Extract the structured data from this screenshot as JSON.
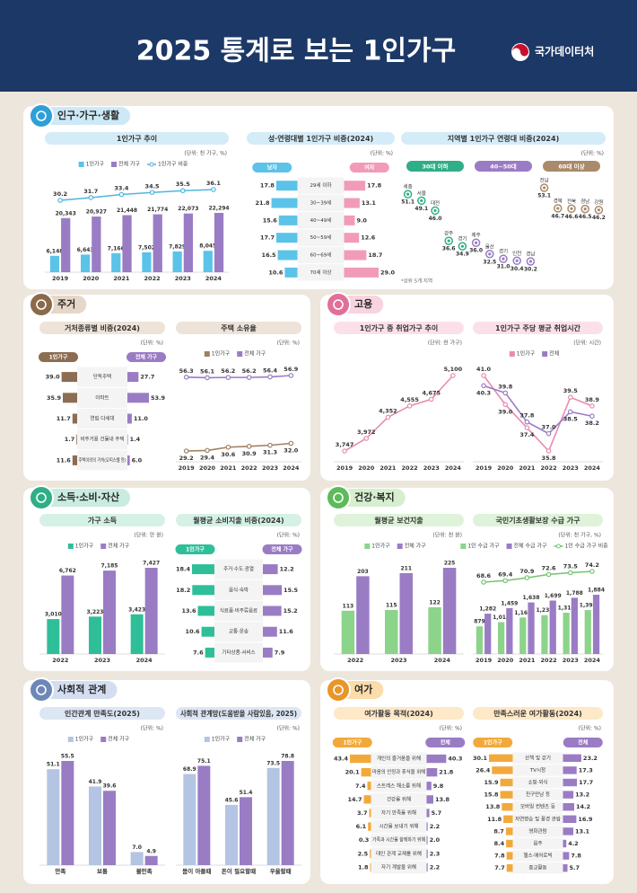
{
  "header": {
    "title": "2025 통계로 보는 1인가구",
    "logo": "국가데이터처"
  },
  "sections": [
    "인구·가구·생활",
    "주거",
    "고용",
    "소득·소비·자산",
    "건강·복지",
    "사회적 관계",
    "여가"
  ],
  "chart_data": [
    {
      "type": "bar",
      "title": "1인가구 추이",
      "unit": "(단위: 천 가구, %)",
      "categories": [
        "2019",
        "2020",
        "2021",
        "2022",
        "2023",
        "2024"
      ],
      "series": [
        {
          "name": "1인가구",
          "color": "#5cc3e8",
          "values": [
            6148,
            6643,
            7166,
            7502,
            7829,
            8045
          ],
          "value_labels": [
            "6,148",
            "6,643",
            "7,166",
            "7,502",
            "7,829",
            "8,045"
          ]
        },
        {
          "name": "전체 가구",
          "color": "#9a7cc4",
          "values": [
            20343,
            20927,
            21448,
            21774,
            22073,
            22294
          ],
          "value_labels": [
            "20,343",
            "20,927",
            "21,448",
            "21,774",
            "22,073",
            "22,294"
          ]
        },
        {
          "name": "1인가구 비중",
          "color": "#4fb6e0",
          "axis": "y2",
          "values": [
            30.2,
            31.7,
            33.4,
            34.5,
            35.5,
            36.1
          ],
          "value_labels": [
            "30.2",
            "31.7",
            "33.4",
            "34.5",
            "35.5",
            "36.1"
          ]
        }
      ]
    },
    {
      "type": "butterfly",
      "title": "성·연령대별 1인가구 비중(2024)",
      "unit": "(단위: %)",
      "categories": [
        "29세 이하",
        "30~39세",
        "40~49세",
        "50~59세",
        "60~69세",
        "70세 이상"
      ],
      "series": [
        {
          "name": "남자",
          "color": "#5cc3e8",
          "values": [
            17.8,
            21.8,
            15.6,
            17.7,
            16.5,
            10.6
          ],
          "value_labels": [
            "17.8",
            "21.8",
            "15.6",
            "17.7",
            "16.5",
            "10.6"
          ]
        },
        {
          "name": "여자",
          "color": "#f29bb8",
          "values": [
            17.8,
            13.1,
            9.0,
            12.6,
            18.7,
            29.0
          ],
          "value_labels": [
            "17.8",
            "13.1",
            "9.0",
            "12.6",
            "18.7",
            "29.0"
          ]
        }
      ]
    },
    {
      "type": "dot",
      "title": "지역별 1인가구 연령대 비중(2024)",
      "unit": "(단위: %)",
      "note": "*상위 5개 지역",
      "groups": [
        {
          "name": "30대 이하",
          "color": "#2fae87",
          "categories": [
            "세종",
            "서울",
            "대전",
            "광주",
            "경기"
          ],
          "values": [
            51.1,
            49.1,
            46.0,
            36.6,
            34.9
          ],
          "value_labels": [
            "51.1",
            "49.1",
            "46.0",
            "36.6",
            "34.9"
          ]
        },
        {
          "name": "40~50대",
          "color": "#9a7cc4",
          "categories": [
            "제주",
            "울산",
            "경기",
            "인천",
            "경남"
          ],
          "values": [
            36.0,
            32.5,
            31.0,
            30.4,
            30.2
          ],
          "value_labels": [
            "36.0",
            "32.5",
            "31.0",
            "30.4",
            "30.2"
          ]
        },
        {
          "name": "60대 이상",
          "color": "#a98a6a",
          "categories": [
            "전남",
            "경북",
            "전북",
            "경남",
            "강원"
          ],
          "values": [
            53.1,
            46.7,
            46.6,
            46.5,
            46.2
          ],
          "value_labels": [
            "53.1",
            "46.7",
            "46.6",
            "46.5",
            "46.2"
          ]
        }
      ]
    },
    {
      "type": "butterfly",
      "title": "거처종류별 비중(2024)",
      "unit": "(단위: %)",
      "categories": [
        "단독주택",
        "아파트",
        "연립·다세대",
        "비주거용 건물내 주택",
        "주택이외의 거처(오피스텔 등)"
      ],
      "series": [
        {
          "name": "1인가구",
          "color": "#8c6d52",
          "values": [
            39.0,
            35.9,
            11.7,
            1.7,
            11.6
          ],
          "value_labels": [
            "39.0",
            "35.9",
            "11.7",
            "1.7",
            "11.6"
          ]
        },
        {
          "name": "전체 가구",
          "color": "#9a7cc4",
          "values": [
            27.7,
            53.9,
            11.0,
            1.4,
            6.0
          ],
          "value_labels": [
            "27.7",
            "53.9",
            "11.0",
            "1.4",
            "6.0"
          ]
        }
      ]
    },
    {
      "type": "line",
      "title": "주택 소유율",
      "unit": "(단위: %)",
      "categories": [
        "2019",
        "2020",
        "2021",
        "2022",
        "2023",
        "2024"
      ],
      "series": [
        {
          "name": "1인가구",
          "color": "#a08060",
          "values": [
            29.2,
            29.4,
            30.6,
            30.9,
            31.3,
            32.0
          ],
          "value_labels": [
            "29.2",
            "29.4",
            "30.6",
            "30.9",
            "31.3",
            "32.0"
          ]
        },
        {
          "name": "전체 가구",
          "color": "#9a7cc4",
          "values": [
            56.3,
            56.1,
            56.2,
            56.2,
            56.4,
            56.9
          ],
          "value_labels": [
            "56.3",
            "56.1",
            "56.2",
            "56.2",
            "56.4",
            "56.9"
          ]
        }
      ]
    },
    {
      "type": "line",
      "title": "1인가구 중 취업가구 추이",
      "unit": "(단위: 천 가구)",
      "categories": [
        "2019",
        "2020",
        "2021",
        "2022",
        "2023",
        "2024"
      ],
      "series": [
        {
          "color": "#e98bb0",
          "values": [
            3747,
            3972,
            4352,
            4555,
            4675,
            5100
          ],
          "value_labels": [
            "3,747",
            "3,972",
            "4,352",
            "4,555",
            "4,675",
            "5,100"
          ]
        }
      ]
    },
    {
      "type": "line",
      "title": "1인가구 주당 평균 취업시간",
      "unit": "(단위: 시간)",
      "categories": [
        "2019",
        "2020",
        "2021",
        "2022",
        "2023",
        "2024"
      ],
      "series": [
        {
          "name": "1인가구",
          "color": "#e98bb0",
          "values": [
            41.0,
            39.0,
            37.4,
            35.8,
            39.5,
            38.9
          ],
          "value_labels": [
            "41.0",
            "39.0",
            "37.4",
            "35.8",
            "39.5",
            "38.9"
          ]
        },
        {
          "name": "전체",
          "color": "#9a7cc4",
          "values": [
            40.3,
            39.8,
            37.8,
            37.0,
            38.5,
            38.2
          ],
          "value_labels": [
            "40.3",
            "39.8",
            "37.8",
            "37.0",
            "38.5",
            "38.2"
          ]
        }
      ]
    },
    {
      "type": "bar",
      "title": "가구 소득",
      "unit": "(단위: 만 원)",
      "categories": [
        "2022",
        "2023",
        "2024"
      ],
      "series": [
        {
          "name": "1인가구",
          "color": "#2fbf98",
          "values": [
            3010,
            3223,
            3423
          ],
          "value_labels": [
            "3,010",
            "3,223",
            "3,423"
          ]
        },
        {
          "name": "전체 가구",
          "color": "#9a7cc4",
          "values": [
            6762,
            7185,
            7427
          ],
          "value_labels": [
            "6,762",
            "7,185",
            "7,427"
          ]
        }
      ]
    },
    {
      "type": "butterfly",
      "title": "월평균 소비지출 비중(2024)",
      "unit": "(단위: %)",
      "categories": [
        "주거·수도·광열",
        "음식·숙박",
        "식료품·비주류음료",
        "교통·운송",
        "기타상품·서비스"
      ],
      "series": [
        {
          "name": "1인가구",
          "color": "#2fbf98",
          "values": [
            18.4,
            18.2,
            13.6,
            10.6,
            7.6
          ],
          "value_labels": [
            "18.4",
            "18.2",
            "13.6",
            "10.6",
            "7.6"
          ]
        },
        {
          "name": "전체 가구",
          "color": "#9a7cc4",
          "values": [
            12.2,
            15.5,
            15.2,
            11.6,
            7.9
          ],
          "value_labels": [
            "12.2",
            "15.5",
            "15.2",
            "11.6",
            "7.9"
          ]
        }
      ]
    },
    {
      "type": "bar",
      "title": "월평균 보건지출",
      "unit": "(단위: 천 원)",
      "categories": [
        "2022",
        "2023",
        "2024"
      ],
      "series": [
        {
          "name": "1인가구",
          "color": "#8cd48a",
          "values": [
            113,
            115,
            122
          ],
          "value_labels": [
            "113",
            "115",
            "122"
          ]
        },
        {
          "name": "전체 가구",
          "color": "#9a7cc4",
          "values": [
            203,
            211,
            225
          ],
          "value_labels": [
            "203",
            "211",
            "225"
          ]
        }
      ]
    },
    {
      "type": "bar",
      "title": "국민기초생활보장 수급 가구",
      "unit": "(단위: 천 가구, %)",
      "categories": [
        "2019",
        "2020",
        "2021",
        "2022",
        "2023",
        "2024"
      ],
      "series": [
        {
          "name": "1인 수급 가구",
          "color": "#8cd48a",
          "values": [
            879,
            1013,
            1161,
            1235,
            1314,
            1397
          ],
          "value_labels": [
            "879",
            "1,013",
            "1,161",
            "1,235",
            "1,314",
            "1,397"
          ]
        },
        {
          "name": "전체 수급 가구",
          "color": "#9a7cc4",
          "values": [
            1282,
            1459,
            1638,
            1699,
            1788,
            1884
          ],
          "value_labels": [
            "1,282",
            "1,459",
            "1,638",
            "1,699",
            "1,788",
            "1,884"
          ]
        },
        {
          "name": "1인 수급 가구 비중",
          "color": "#74c36f",
          "axis": "y2",
          "values": [
            68.6,
            69.4,
            70.9,
            72.6,
            73.5,
            74.2
          ],
          "value_labels": [
            "68.6",
            "69.4",
            "70.9",
            "72.6",
            "73.5",
            "74.2"
          ]
        }
      ]
    },
    {
      "type": "bar",
      "title": "인간관계 만족도(2025)",
      "unit": "(단위: %)",
      "categories": [
        "만족",
        "보통",
        "불만족"
      ],
      "series": [
        {
          "name": "1인가구",
          "color": "#b3c5e2",
          "values": [
            51.1,
            41.9,
            7.0
          ],
          "value_labels": [
            "51.1",
            "41.9",
            "7.0"
          ]
        },
        {
          "name": "전체 가구",
          "color": "#9a7cc4",
          "values": [
            55.5,
            39.6,
            4.9
          ],
          "value_labels": [
            "55.5",
            "39.6",
            "4.9"
          ]
        }
      ]
    },
    {
      "type": "bar",
      "title": "사회적 관계망(도움받을 사람있음, 2025)",
      "unit": "(단위: %)",
      "categories": [
        "몸이 아플때",
        "돈이 필요할때",
        "우울할때"
      ],
      "series": [
        {
          "name": "1인가구",
          "color": "#b3c5e2",
          "values": [
            68.9,
            45.6,
            73.5
          ],
          "value_labels": [
            "68.9",
            "45.6",
            "73.5"
          ]
        },
        {
          "name": "전체 가구",
          "color": "#9a7cc4",
          "values": [
            75.1,
            51.4,
            78.8
          ],
          "value_labels": [
            "75.1",
            "51.4",
            "78.8"
          ]
        }
      ]
    },
    {
      "type": "butterfly",
      "title": "여가활동 목적(2024)",
      "unit": "(단위: %)",
      "categories": [
        "개인의 즐거움을 위해",
        "마음의 안정과 휴식을 위해",
        "스트레스 해소를 위해",
        "건강을 위해",
        "자기 만족을 위해",
        "시간을 보내기 위해",
        "가족과 시간을 함께하기 위해",
        "대인 관계 교제를 위해",
        "자기 계발을 위해"
      ],
      "series": [
        {
          "name": "1인가구",
          "color": "#f2a93b",
          "values": [
            43.4,
            20.1,
            7.4,
            14.7,
            3.7,
            6.1,
            0.3,
            2.5,
            1.8
          ],
          "value_labels": [
            "43.4",
            "20.1",
            "7.4",
            "14.7",
            "3.7",
            "6.1",
            "0.3",
            "2.5",
            "1.8"
          ]
        },
        {
          "name": "전체",
          "color": "#9a7cc4",
          "values": [
            40.3,
            21.8,
            9.8,
            13.8,
            5.7,
            2.2,
            2.0,
            2.3,
            2.2
          ],
          "value_labels": [
            "40.3",
            "21.8",
            "9.8",
            "13.8",
            "5.7",
            "2.2",
            "2.0",
            "2.3",
            "2.2"
          ]
        }
      ]
    },
    {
      "type": "butterfly",
      "title": "만족스러운 여가활동(2024)",
      "unit": "(단위: %)",
      "categories": [
        "산책 및 걷기",
        "TV시청",
        "쇼핑·외식",
        "친구만남 등",
        "모바일 컨텐츠 등",
        "자연명승 및 풍경 관람",
        "영화관람",
        "음주",
        "헬스·에어로빅",
        "종교활동"
      ],
      "series": [
        {
          "name": "1인가구",
          "color": "#f2a93b",
          "values": [
            30.1,
            26.4,
            15.9,
            15.8,
            13.8,
            11.8,
            8.7,
            8.4,
            7.8,
            7.7
          ],
          "value_labels": [
            "30.1",
            "26.4",
            "15.9",
            "15.8",
            "13.8",
            "11.8",
            "8.7",
            "8.4",
            "7.8",
            "7.7"
          ]
        },
        {
          "name": "전체",
          "color": "#9a7cc4",
          "values": [
            23.2,
            17.3,
            17.7,
            13.2,
            14.2,
            16.9,
            13.1,
            4.2,
            7.8,
            5.7
          ],
          "value_labels": [
            "23.2",
            "17.3",
            "17.7",
            "13.2",
            "14.2",
            "16.9",
            "13.1",
            "4.2",
            "7.8",
            "5.7"
          ]
        }
      ]
    }
  ]
}
